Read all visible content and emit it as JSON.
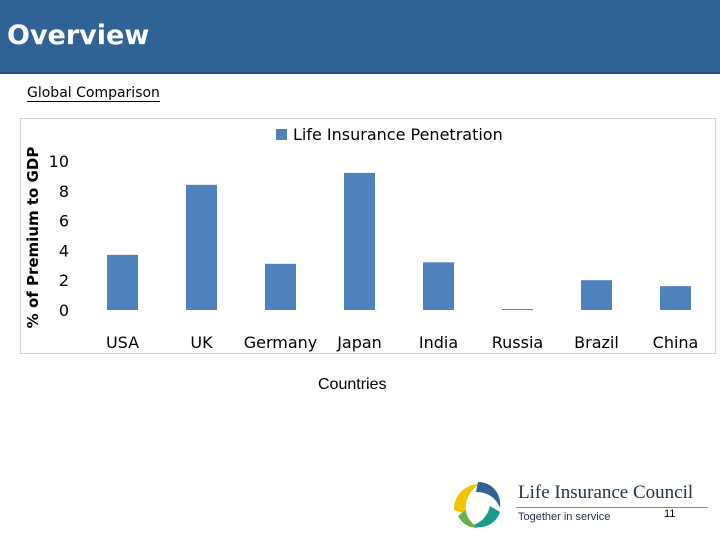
{
  "header": {
    "title": "Overview"
  },
  "subtitle": "Global Comparison",
  "chart_data": {
    "type": "bar",
    "categories": [
      "USA",
      "UK",
      "Germany",
      "Japan",
      "India",
      "Russia",
      "Brazil",
      "China"
    ],
    "series": [
      {
        "name": "Life Insurance Penetration",
        "values": [
          3.7,
          8.4,
          3.1,
          9.2,
          3.2,
          0.05,
          2.0,
          1.6
        ],
        "color": "#4f81bd"
      }
    ],
    "ylabel": "% of Premium to GDP",
    "xlabel": "Countries",
    "ylim": [
      0,
      10
    ],
    "yticks": [
      0,
      2,
      4,
      6,
      8,
      10
    ],
    "grid": false,
    "legend": "top-center"
  },
  "logo": {
    "name": "Life Insurance Council",
    "tagline": "Together in service"
  },
  "page_number": "11"
}
